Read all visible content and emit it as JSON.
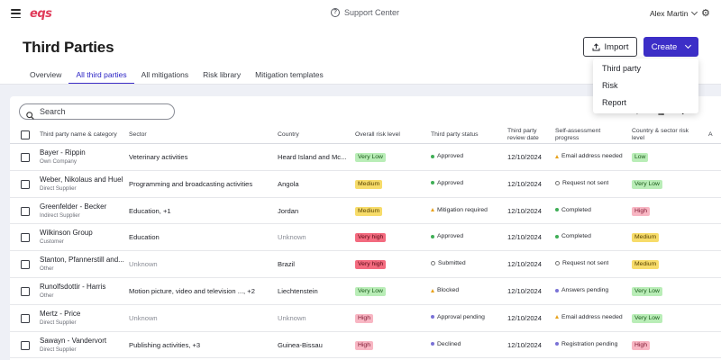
{
  "app": {
    "logo": "eqs"
  },
  "topbar": {
    "support": "Support Center",
    "user": "Alex Martin"
  },
  "header": {
    "title": "Third Parties",
    "import_label": "Import",
    "create_label": "Create"
  },
  "create_menu": [
    "Third party",
    "Risk",
    "Report"
  ],
  "tabs": [
    {
      "label": "Overview",
      "active": false
    },
    {
      "label": "All third parties",
      "active": true
    },
    {
      "label": "All mitigations",
      "active": false
    },
    {
      "label": "Risk library",
      "active": false
    },
    {
      "label": "Mitigation templates",
      "active": false
    }
  ],
  "search": {
    "placeholder": "Search"
  },
  "table": {
    "columns": [
      "Third party name & category",
      "Sector",
      "Country",
      "Overall risk level",
      "Third party status",
      "Third party review date",
      "Self-assessment progress",
      "Country & sector risk level",
      "A"
    ],
    "rows": [
      {
        "name": "Bayer - Rippin",
        "category": "Own Company",
        "sector": "Veterinary activities",
        "sector_muted": false,
        "country": "Heard Island and Mc...",
        "country_muted": false,
        "risk": "Very Low",
        "risk_kind": "lowest",
        "status": "Approved",
        "status_icon": "dot-green",
        "date": "12/10/2024",
        "progress": "Email address needed",
        "progress_icon": "tri",
        "cs_risk": "Low",
        "cs_kind": "low"
      },
      {
        "name": "Weber, Nikolaus and Huel",
        "category": "Direct Supplier",
        "sector": "Programming and broadcasting activities",
        "sector_muted": false,
        "country": "Angola",
        "country_muted": false,
        "risk": "Medium",
        "risk_kind": "medium",
        "status": "Approved",
        "status_icon": "dot-green",
        "date": "12/10/2024",
        "progress": "Request not sent",
        "progress_icon": "ring",
        "cs_risk": "Very Low",
        "cs_kind": "lowest"
      },
      {
        "name": "Greenfelder - Becker",
        "category": "Indirect Supplier",
        "sector": "Education, +1",
        "sector_muted": false,
        "country": "Jordan",
        "country_muted": false,
        "risk": "Medium",
        "risk_kind": "medium",
        "status": "Mitigation required",
        "status_icon": "tri",
        "date": "12/10/2024",
        "progress": "Completed",
        "progress_icon": "dot-green",
        "cs_risk": "High",
        "cs_kind": "high"
      },
      {
        "name": "Wilkinson Group",
        "category": "Customer",
        "sector": "Education",
        "sector_muted": false,
        "country": "Unknown",
        "country_muted": true,
        "risk": "Very high",
        "risk_kind": "vhigh",
        "status": "Approved",
        "status_icon": "dot-green",
        "date": "12/10/2024",
        "progress": "Completed",
        "progress_icon": "dot-green",
        "cs_risk": "Medium",
        "cs_kind": "medium"
      },
      {
        "name": "Stanton, Pfannerstill and...",
        "category": "Other",
        "sector": "Unknown",
        "sector_muted": true,
        "country": "Brazil",
        "country_muted": false,
        "risk": "Very high",
        "risk_kind": "vhigh",
        "status": "Submitted",
        "status_icon": "ring",
        "date": "12/10/2024",
        "progress": "Request not sent",
        "progress_icon": "ring",
        "cs_risk": "Medium",
        "cs_kind": "medium"
      },
      {
        "name": "Runolfsdottir - Harris",
        "category": "Other",
        "sector": "Motion picture, video and television ..., +2",
        "sector_muted": false,
        "country": "Liechtenstein",
        "country_muted": false,
        "risk": "Very Low",
        "risk_kind": "lowest",
        "status": "Blocked",
        "status_icon": "tri",
        "date": "12/10/2024",
        "progress": "Answers pending",
        "progress_icon": "dot-purple",
        "cs_risk": "Very Low",
        "cs_kind": "lowest"
      },
      {
        "name": "Mertz - Price",
        "category": "Direct Supplier",
        "sector": "Unknown",
        "sector_muted": true,
        "country": "Unknown",
        "country_muted": true,
        "risk": "High",
        "risk_kind": "high",
        "status": "Approval pending",
        "status_icon": "dot-purple",
        "date": "12/10/2024",
        "progress": "Email address needed",
        "progress_icon": "tri",
        "cs_risk": "Very Low",
        "cs_kind": "lowest"
      },
      {
        "name": "Sawayn - Vandervort",
        "category": "Direct Supplier",
        "sector": "Publishing activities, +3",
        "sector_muted": false,
        "country": "Guinea-Bissau",
        "country_muted": false,
        "risk": "High",
        "risk_kind": "high",
        "status": "Declined",
        "status_icon": "dot-purple",
        "date": "12/10/2024",
        "progress": "Registration pending",
        "progress_icon": "dot-purple",
        "cs_risk": "High",
        "cs_kind": "high"
      }
    ]
  },
  "colors": {
    "accent": "#3c2ec7",
    "logo": "#e03b5a",
    "content_bg": "#eef0f6"
  }
}
